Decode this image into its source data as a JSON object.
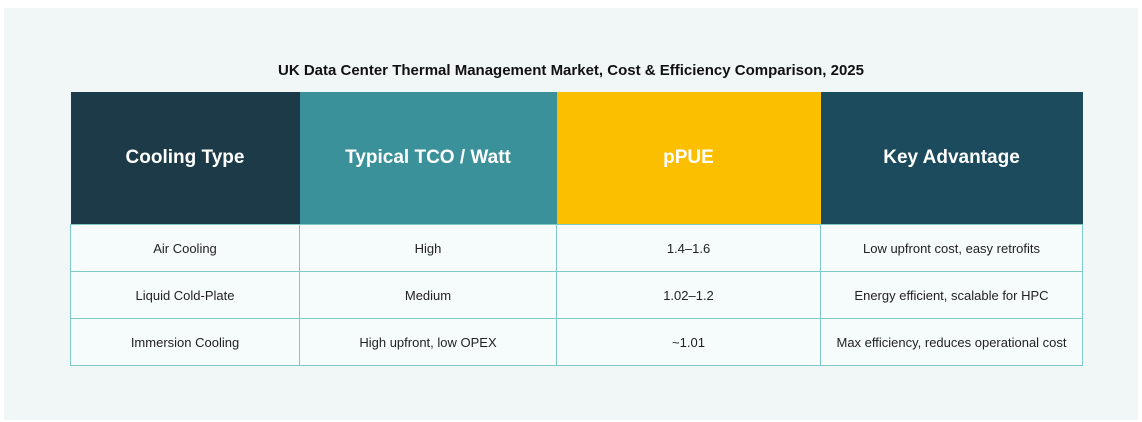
{
  "header": {
    "title": "UK Data Center Thermal Management Market, Cost & Efficiency Comparison, 2025"
  },
  "table": {
    "columns": [
      "Cooling Type",
      "Typical TCO / Watt",
      "pPUE",
      "Key Advantage"
    ],
    "rows": [
      [
        "Air Cooling",
        "High",
        "1.4–1.6",
        "Low upfront cost, easy retrofits"
      ],
      [
        "Liquid Cold-Plate",
        "Medium",
        "1.02–1.2",
        "Energy efficient, scalable for HPC"
      ],
      [
        "Immersion Cooling",
        "High upfront, low OPEX",
        "~1.01",
        "Max efficiency, reduces operational cost"
      ]
    ]
  }
}
